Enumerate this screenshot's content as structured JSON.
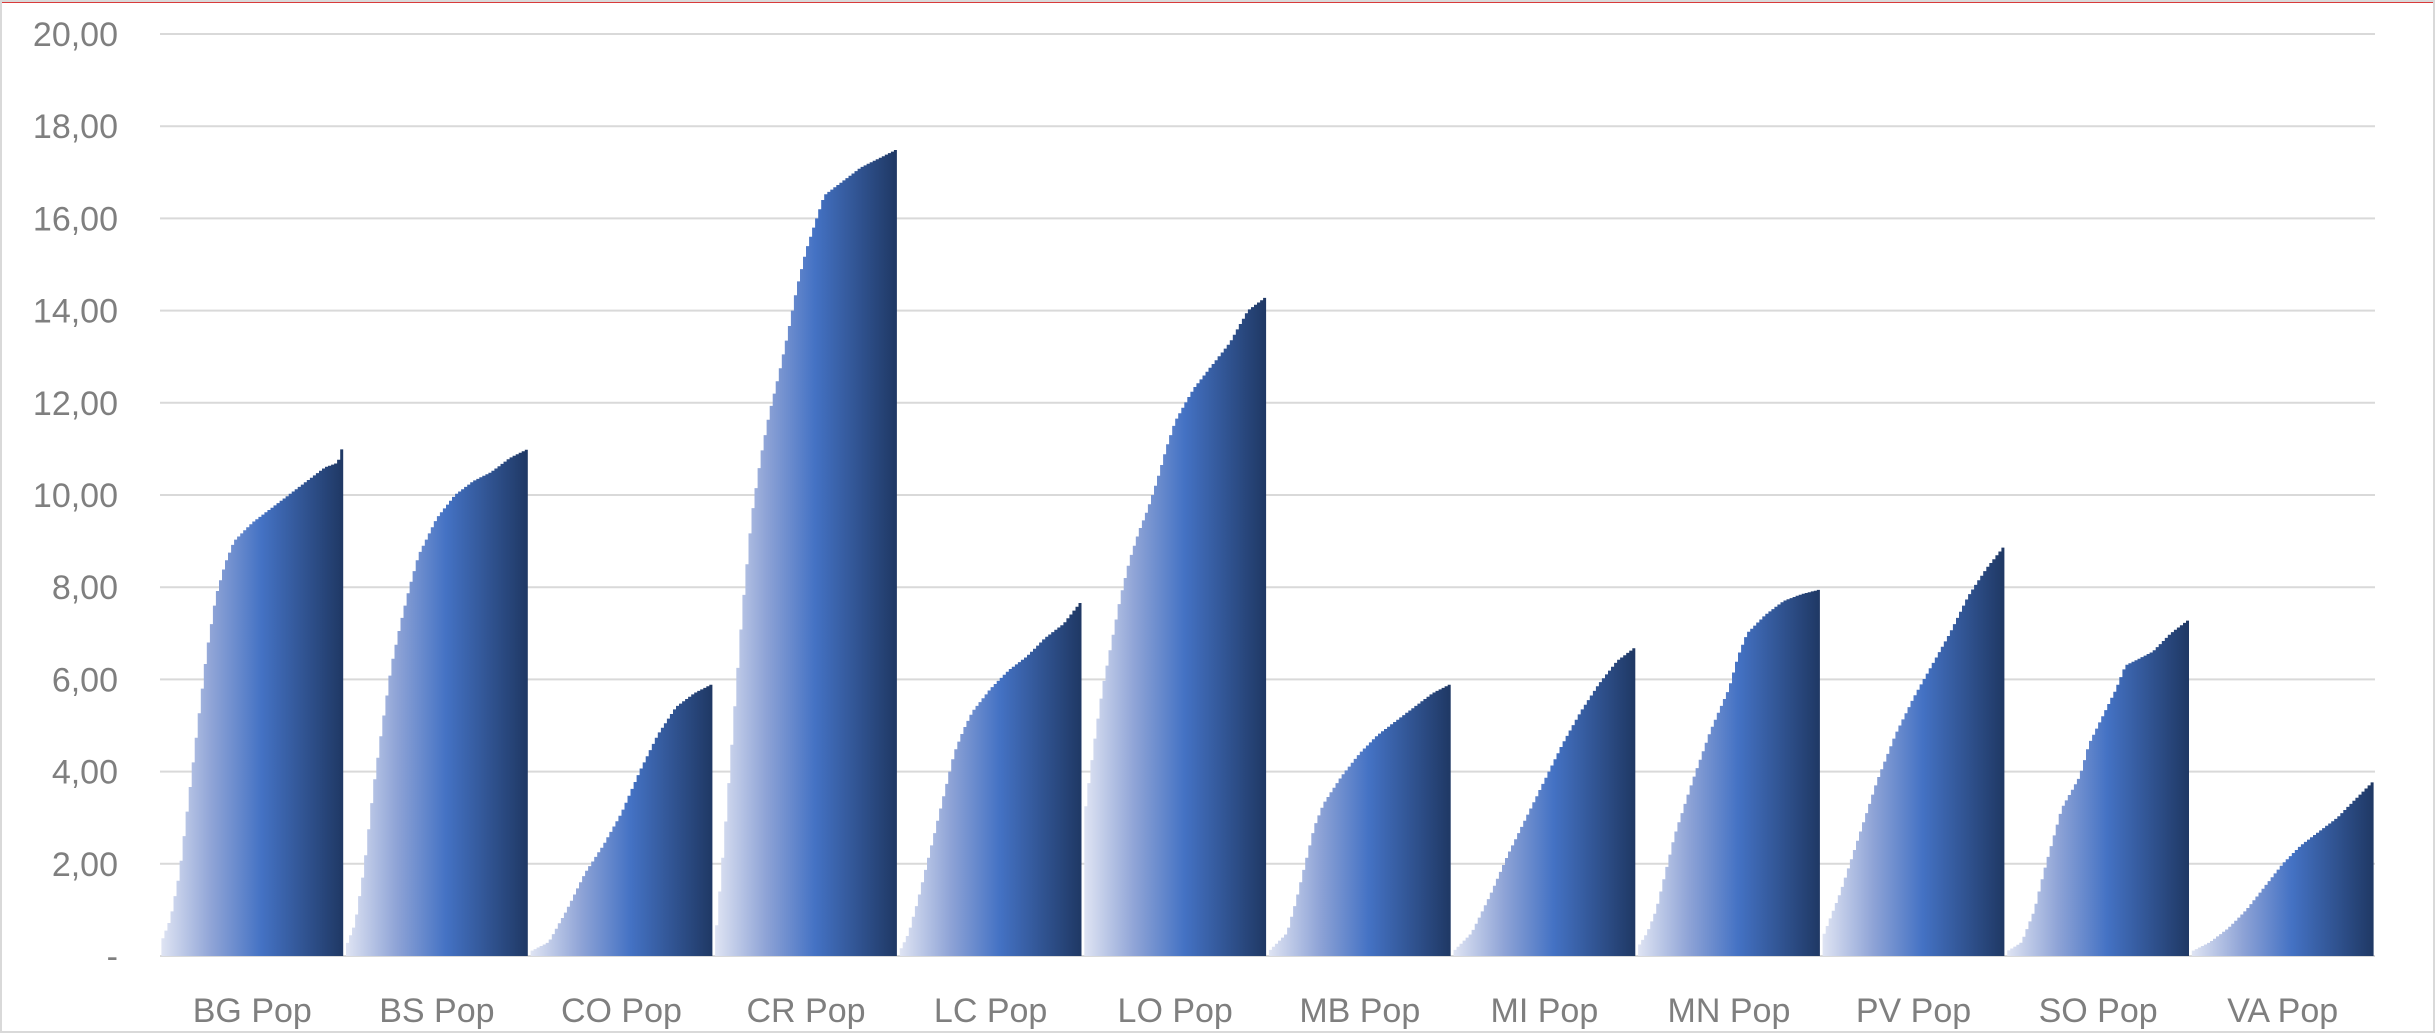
{
  "chart_data": {
    "type": "bar",
    "title": "",
    "xlabel": "",
    "ylabel": "",
    "ylim": [
      0,
      20
    ],
    "grid": true,
    "legend": "none",
    "y_ticks": [
      "-",
      "2,00",
      "4,00",
      "6,00",
      "8,00",
      "10,00",
      "12,00",
      "14,00",
      "16,00",
      "18,00",
      "20,00"
    ],
    "categories": [
      "BG Pop",
      "BS Pop",
      "CO Pop",
      "CR Pop",
      "LC Pop",
      "LO Pop",
      "MB Pop",
      "MI Pop",
      "MN Pop",
      "PV Pop",
      "SO Pop",
      "VA Pop"
    ],
    "series": [
      {
        "profile": [
          [
            0,
            0.3
          ],
          [
            0.05,
            0.8
          ],
          [
            0.1,
            1.8
          ],
          [
            0.15,
            3.4
          ],
          [
            0.2,
            5.0
          ],
          [
            0.25,
            6.6
          ],
          [
            0.3,
            7.8
          ],
          [
            0.35,
            8.5
          ],
          [
            0.4,
            9.0
          ],
          [
            0.5,
            9.4
          ],
          [
            0.6,
            9.7
          ],
          [
            0.7,
            10.0
          ],
          [
            0.8,
            10.3
          ],
          [
            0.9,
            10.6
          ],
          [
            0.97,
            10.7
          ],
          [
            1,
            11.1
          ]
        ]
      },
      {
        "profile": [
          [
            0,
            0.2
          ],
          [
            0.05,
            0.7
          ],
          [
            0.1,
            1.9
          ],
          [
            0.15,
            3.6
          ],
          [
            0.2,
            5.0
          ],
          [
            0.25,
            6.3
          ],
          [
            0.3,
            7.2
          ],
          [
            0.35,
            8.0
          ],
          [
            0.4,
            8.7
          ],
          [
            0.5,
            9.5
          ],
          [
            0.6,
            10.0
          ],
          [
            0.7,
            10.3
          ],
          [
            0.8,
            10.5
          ],
          [
            0.9,
            10.8
          ],
          [
            1,
            11.0
          ]
        ]
      },
      {
        "profile": [
          [
            0,
            0.1
          ],
          [
            0.1,
            0.3
          ],
          [
            0.2,
            1.0
          ],
          [
            0.3,
            1.8
          ],
          [
            0.4,
            2.4
          ],
          [
            0.5,
            3.1
          ],
          [
            0.6,
            4.0
          ],
          [
            0.7,
            4.8
          ],
          [
            0.8,
            5.4
          ],
          [
            0.9,
            5.7
          ],
          [
            1,
            5.9
          ]
        ]
      },
      {
        "profile": [
          [
            0,
            0.3
          ],
          [
            0.05,
            2.5
          ],
          [
            0.1,
            5.0
          ],
          [
            0.15,
            7.5
          ],
          [
            0.2,
            9.5
          ],
          [
            0.25,
            10.8
          ],
          [
            0.3,
            11.8
          ],
          [
            0.35,
            12.6
          ],
          [
            0.4,
            13.5
          ],
          [
            0.45,
            14.5
          ],
          [
            0.5,
            15.3
          ],
          [
            0.55,
            15.9
          ],
          [
            0.6,
            16.5
          ],
          [
            0.7,
            16.8
          ],
          [
            0.8,
            17.1
          ],
          [
            0.9,
            17.3
          ],
          [
            1,
            17.5
          ]
        ]
      },
      {
        "profile": [
          [
            0,
            0.1
          ],
          [
            0.05,
            0.5
          ],
          [
            0.1,
            1.2
          ],
          [
            0.15,
            2.0
          ],
          [
            0.2,
            2.8
          ],
          [
            0.25,
            3.6
          ],
          [
            0.3,
            4.4
          ],
          [
            0.35,
            4.9
          ],
          [
            0.4,
            5.3
          ],
          [
            0.5,
            5.8
          ],
          [
            0.6,
            6.2
          ],
          [
            0.7,
            6.5
          ],
          [
            0.8,
            6.9
          ],
          [
            0.9,
            7.2
          ],
          [
            1,
            7.7
          ]
        ]
      },
      {
        "profile": [
          [
            0,
            3.0
          ],
          [
            0.05,
            4.5
          ],
          [
            0.1,
            5.8
          ],
          [
            0.15,
            6.8
          ],
          [
            0.2,
            7.8
          ],
          [
            0.25,
            8.6
          ],
          [
            0.3,
            9.2
          ],
          [
            0.35,
            9.7
          ],
          [
            0.4,
            10.3
          ],
          [
            0.45,
            11.0
          ],
          [
            0.5,
            11.6
          ],
          [
            0.6,
            12.3
          ],
          [
            0.7,
            12.8
          ],
          [
            0.8,
            13.3
          ],
          [
            0.9,
            14.0
          ],
          [
            1,
            14.3
          ]
        ]
      },
      {
        "profile": [
          [
            0,
            0.1
          ],
          [
            0.1,
            0.5
          ],
          [
            0.15,
            1.2
          ],
          [
            0.2,
            2.0
          ],
          [
            0.25,
            2.8
          ],
          [
            0.3,
            3.3
          ],
          [
            0.4,
            3.9
          ],
          [
            0.5,
            4.4
          ],
          [
            0.6,
            4.8
          ],
          [
            0.7,
            5.1
          ],
          [
            0.8,
            5.4
          ],
          [
            0.9,
            5.7
          ],
          [
            1,
            5.9
          ]
        ]
      },
      {
        "profile": [
          [
            0,
            0.1
          ],
          [
            0.1,
            0.5
          ],
          [
            0.2,
            1.3
          ],
          [
            0.3,
            2.2
          ],
          [
            0.4,
            3.0
          ],
          [
            0.5,
            3.8
          ],
          [
            0.6,
            4.6
          ],
          [
            0.7,
            5.3
          ],
          [
            0.8,
            5.9
          ],
          [
            0.9,
            6.4
          ],
          [
            1,
            6.7
          ]
        ]
      },
      {
        "profile": [
          [
            0,
            0.2
          ],
          [
            0.05,
            0.5
          ],
          [
            0.1,
            1.0
          ],
          [
            0.15,
            1.8
          ],
          [
            0.2,
            2.6
          ],
          [
            0.3,
            3.8
          ],
          [
            0.4,
            4.9
          ],
          [
            0.5,
            5.8
          ],
          [
            0.55,
            6.5
          ],
          [
            0.6,
            7.0
          ],
          [
            0.7,
            7.4
          ],
          [
            0.8,
            7.7
          ],
          [
            0.9,
            7.85
          ],
          [
            1,
            7.95
          ]
        ]
      },
      {
        "profile": [
          [
            0,
            0.4
          ],
          [
            0.05,
            0.9
          ],
          [
            0.1,
            1.4
          ],
          [
            0.2,
            2.6
          ],
          [
            0.3,
            3.8
          ],
          [
            0.4,
            4.8
          ],
          [
            0.5,
            5.6
          ],
          [
            0.6,
            6.3
          ],
          [
            0.7,
            7.0
          ],
          [
            0.8,
            7.8
          ],
          [
            0.9,
            8.4
          ],
          [
            1,
            8.9
          ]
        ]
      },
      {
        "profile": [
          [
            0,
            0.1
          ],
          [
            0.08,
            0.3
          ],
          [
            0.15,
            1.0
          ],
          [
            0.2,
            1.8
          ],
          [
            0.25,
            2.5
          ],
          [
            0.3,
            3.2
          ],
          [
            0.4,
            3.9
          ],
          [
            0.45,
            4.6
          ],
          [
            0.5,
            5.0
          ],
          [
            0.6,
            5.8
          ],
          [
            0.65,
            6.3
          ],
          [
            0.8,
            6.6
          ],
          [
            0.9,
            7.0
          ],
          [
            1,
            7.3
          ]
        ]
      },
      {
        "profile": [
          [
            0,
            0.1
          ],
          [
            0.1,
            0.3
          ],
          [
            0.2,
            0.6
          ],
          [
            0.3,
            1.0
          ],
          [
            0.4,
            1.5
          ],
          [
            0.5,
            2.0
          ],
          [
            0.6,
            2.4
          ],
          [
            0.7,
            2.7
          ],
          [
            0.8,
            3.0
          ],
          [
            0.9,
            3.4
          ],
          [
            1,
            3.8
          ]
        ]
      }
    ]
  }
}
